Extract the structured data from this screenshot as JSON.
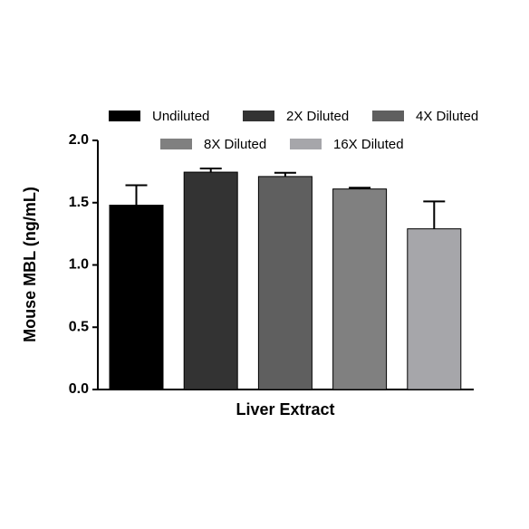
{
  "chart_data": {
    "type": "bar",
    "y_label": "Mouse MBL (ng/mL)",
    "categories": [
      "Liver Extract"
    ],
    "series": [
      {
        "name": "Undiluted",
        "color": "#000000",
        "values": [
          1.48
        ],
        "errors": [
          0.16
        ]
      },
      {
        "name": "2X Diluted",
        "color": "#333333",
        "values": [
          1.745
        ],
        "errors": [
          0.03
        ]
      },
      {
        "name": "4X Diluted",
        "color": "#5f5f5f",
        "values": [
          1.71
        ],
        "errors": [
          0.03
        ]
      },
      {
        "name": "8X Diluted",
        "color": "#808080",
        "values": [
          1.61
        ],
        "errors": [
          0.01
        ]
      },
      {
        "name": "16X Diluted",
        "color": "#a6a6aa",
        "values": [
          1.29
        ],
        "errors": [
          0.22
        ]
      }
    ],
    "ylim": [
      0,
      2.0
    ],
    "yticks": [
      {
        "value": 0,
        "label": "0.0"
      },
      0.5,
      {
        "value": 1,
        "label": "1.0"
      },
      1.5,
      {
        "value": 2,
        "label": "2.0"
      }
    ],
    "grid": false
  }
}
